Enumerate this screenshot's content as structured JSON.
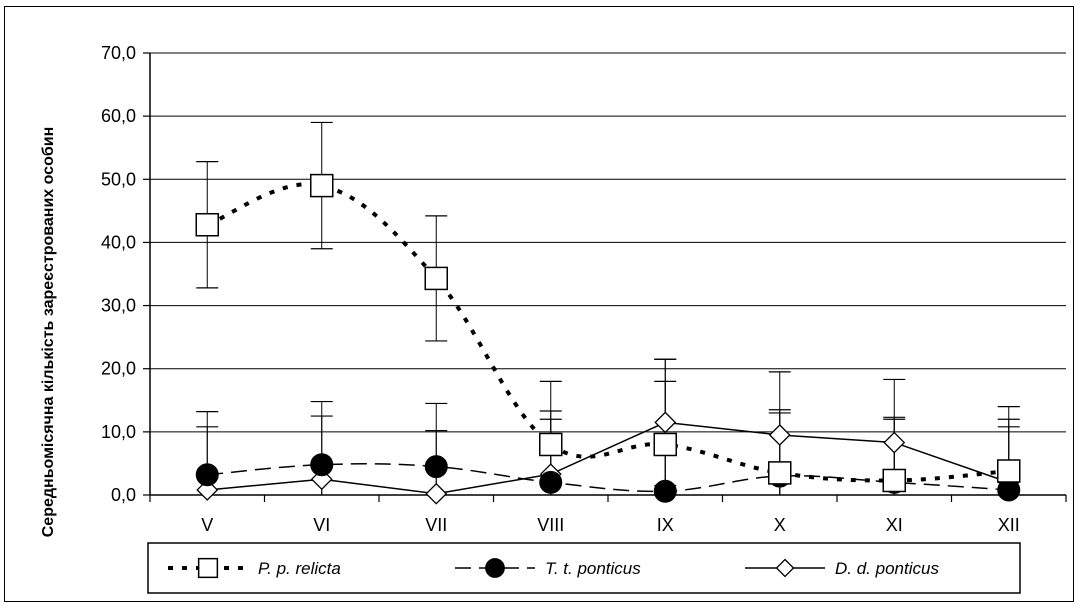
{
  "chart_data": {
    "type": "line",
    "title": "",
    "xlabel": "",
    "ylabel": "Середньомісячна  кількість зареєстрованих особин",
    "ylim": [
      0,
      70
    ],
    "y_ticks": [
      "0,0",
      "10,0",
      "20,0",
      "30,0",
      "40,0",
      "50,0",
      "60,0",
      "70,0"
    ],
    "grid": "horizontal",
    "legend_position": "bottom",
    "categories": [
      "V",
      "VI",
      "VII",
      "VIII",
      "IX",
      "X",
      "XI",
      "XII"
    ],
    "series": [
      {
        "name": "P. p. relicta",
        "style": "dotted",
        "marker": "square",
        "smooth": true,
        "values": [
          42.8,
          49.0,
          34.3,
          8.0,
          8.0,
          3.5,
          2.3,
          3.8
        ],
        "error": [
          10.0,
          10.0,
          9.9,
          10.0,
          13.5,
          10.0,
          10.0,
          10.2
        ]
      },
      {
        "name": "T. t. ponticus",
        "style": "dashed",
        "marker": "circle",
        "smooth": true,
        "values": [
          3.2,
          4.8,
          4.5,
          2.0,
          0.6,
          3.0,
          2.0,
          0.8
        ],
        "error": [
          10.0,
          10.0,
          10.0,
          10.0,
          17.4,
          10.0,
          10.0,
          10.0
        ]
      },
      {
        "name": "D. d. ponticus",
        "style": "solid",
        "marker": "diamond",
        "smooth": false,
        "values": [
          0.8,
          2.5,
          0.2,
          3.3,
          11.5,
          9.5,
          8.3,
          2.0
        ],
        "error": [
          10.0,
          10.0,
          10.0,
          10.0,
          10.0,
          10.0,
          10.0,
          10.0
        ]
      }
    ],
    "colors": {
      "line": "#000000",
      "grid": "#000000",
      "marker_fill_open": "#ffffff",
      "marker_fill_solid": "#000000"
    }
  }
}
